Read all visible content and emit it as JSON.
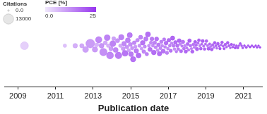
{
  "chart_data": {
    "type": "bubble",
    "x_label": "Publication date",
    "xlim": [
      2008.3,
      2022
    ],
    "xticks": [
      2009,
      2011,
      2013,
      2015,
      2017,
      2019,
      2021
    ],
    "grid": false,
    "tick_labels": "x",
    "size_legend": {
      "title": "Citations",
      "ticks": [
        {
          "value": 0,
          "label": "0.0"
        },
        13000
      ]
    },
    "color_bar": {
      "title": "PCE [%]",
      "range": [
        0,
        25
      ],
      "ticks": [
        {
          "value": 0,
          "label": "0.0"
        },
        25
      ]
    },
    "x": [
      2009.35,
      2011.5,
      2012.05,
      2012.4,
      2012.6,
      2012.85,
      2013.1,
      2013.2,
      2013.3,
      2013.45,
      2013.55,
      2013.65,
      2013.75,
      2013.8,
      2013.9,
      2013.95,
      2014.05,
      2014.1,
      2014.2,
      2014.3,
      2014.35,
      2014.45,
      2014.5,
      2014.6,
      2014.65,
      2014.7,
      2014.8,
      2014.85,
      2014.9,
      2014.95,
      2014.98,
      2015.02,
      2015.08,
      2015.13,
      2015.19,
      2015.25,
      2015.3,
      2015.36,
      2015.42,
      2015.47,
      2015.53,
      2015.58,
      2015.64,
      2015.7,
      2015.75,
      2015.81,
      2015.86,
      2015.92,
      2015.97,
      2016.03,
      2016.08,
      2016.13,
      2016.18,
      2016.23,
      2016.28,
      2016.33,
      2016.38,
      2016.43,
      2016.48,
      2016.53,
      2016.58,
      2016.63,
      2016.68,
      2016.73,
      2016.78,
      2016.83,
      2016.88,
      2016.93,
      2016.98,
      2017.03,
      2017.08,
      2017.13,
      2017.18,
      2017.23,
      2017.28,
      2017.33,
      2017.38,
      2017.43,
      2017.48,
      2017.53,
      2017.58,
      2017.63,
      2017.68,
      2017.73,
      2017.78,
      2017.83,
      2017.88,
      2017.93,
      2017.98,
      2018.03,
      2018.08,
      2018.13,
      2018.18,
      2018.23,
      2018.28,
      2018.33,
      2018.38,
      2018.43,
      2018.48,
      2018.53,
      2018.58,
      2018.63,
      2018.68,
      2018.73,
      2018.78,
      2018.83,
      2018.88,
      2018.93,
      2018.98,
      2019.03,
      2019.09,
      2019.14,
      2019.2,
      2019.25,
      2019.31,
      2019.36,
      2019.42,
      2019.47,
      2019.53,
      2019.58,
      2019.64,
      2019.7,
      2019.75,
      2019.81,
      2019.86,
      2019.92,
      2019.97,
      2020.03,
      2020.1,
      2020.16,
      2020.23,
      2020.3,
      2020.36,
      2020.43,
      2020.5,
      2020.56,
      2020.63,
      2020.7,
      2020.76,
      2020.83,
      2020.9,
      2020.96,
      2021.05,
      2021.15,
      2021.25,
      2021.35,
      2021.45,
      2021.55,
      2021.65,
      2021.72,
      2021.8,
      2021.88
    ],
    "citations": [
      7000,
      600,
      1500,
      1200,
      3000,
      9000,
      2500,
      800,
      4000,
      1800,
      6000,
      1000,
      3000,
      600,
      5000,
      1200,
      3500,
      800,
      2000,
      1200,
      4500,
      600,
      2500,
      900,
      1500,
      3000,
      700,
      1900,
      500,
      2200,
      1000,
      1800,
      600,
      2400,
      900,
      400,
      1500,
      700,
      2000,
      500,
      1100,
      300,
      1600,
      800,
      450,
      1300,
      600,
      2100,
      350,
      1200,
      500,
      900,
      300,
      1700,
      650,
      400,
      1000,
      250,
      800,
      1400,
      350,
      600,
      200,
      1100,
      450,
      300,
      900,
      550,
      250,
      800,
      300,
      500,
      200,
      1200,
      400,
      250,
      700,
      150,
      550,
      300,
      900,
      200,
      450,
      120,
      650,
      280,
      180,
      500,
      100,
      400,
      150,
      700,
      250,
      100,
      500,
      200,
      80,
      350,
      150,
      600,
      120,
      300,
      90,
      250,
      60,
      400,
      110,
      200,
      70,
      250,
      80,
      400,
      120,
      60,
      300,
      150,
      50,
      200,
      90,
      40,
      250,
      70,
      130,
      30,
      180,
      60,
      100,
      150,
      50,
      220,
      80,
      30,
      120,
      60,
      20,
      100,
      40,
      70,
      15,
      50,
      25,
      40,
      30,
      60,
      15,
      40,
      10,
      25,
      8,
      15,
      5,
      8
    ],
    "pce": [
      4,
      6,
      9,
      10,
      11,
      12,
      12,
      8,
      15,
      13,
      14,
      10,
      16,
      9,
      15,
      12,
      16,
      11,
      15,
      13,
      17,
      10,
      16,
      12,
      15,
      18,
      13,
      16,
      11,
      17,
      14,
      17,
      13,
      18,
      15,
      12,
      17,
      14,
      19,
      13,
      16,
      12,
      18,
      15,
      14,
      17,
      16,
      19,
      13,
      18,
      15,
      17,
      14,
      19,
      16,
      15,
      18,
      13,
      17,
      19,
      15,
      16,
      14,
      18,
      17,
      15,
      19,
      16,
      14,
      19,
      16,
      18,
      15,
      20,
      17,
      14,
      19,
      16,
      18,
      17,
      20,
      15,
      19,
      16,
      18,
      17,
      15,
      20,
      17,
      19,
      17,
      21,
      18,
      16,
      20,
      18,
      17,
      21,
      19,
      20,
      18,
      21,
      17,
      20,
      19,
      21,
      18,
      20,
      19,
      20,
      18,
      21,
      19,
      17,
      21,
      20,
      18,
      22,
      20,
      19,
      21,
      20,
      22,
      19,
      21,
      20,
      22,
      21,
      20,
      22,
      21,
      19,
      22,
      21,
      20,
      23,
      21,
      22,
      20,
      23,
      21,
      22,
      22,
      23,
      21,
      24,
      22,
      23,
      22,
      24,
      23,
      24
    ]
  }
}
